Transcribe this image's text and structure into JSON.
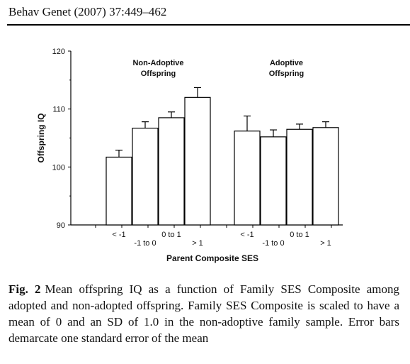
{
  "header": {
    "journal_ref": "Behav Genet (2007) 37:449–462"
  },
  "caption": {
    "label": "Fig. 2",
    "text": "Mean offspring IQ as a function of Family SES Composite among adopted and non-adopted offspring. Family SES Composite is scaled to have a mean of 0 and an SD of 1.0 in the non-adoptive family sample. Error bars demarcate one standard error of the mean"
  },
  "chart_data": {
    "type": "bar",
    "xlabel": "Parent Composite SES",
    "ylabel": "Offspring IQ",
    "ylim": [
      90,
      120
    ],
    "yticks": [
      90,
      100,
      110,
      120
    ],
    "categories": [
      "< -1",
      "-1 to 0",
      "0 to 1",
      "> 1"
    ],
    "error_bars": "one-sided, upward, standard error",
    "grid": false,
    "series": [
      {
        "name": "Non-Adoptive Offspring",
        "group_label_lines": [
          "Non-Adoptive",
          "Offspring"
        ],
        "values": [
          101.7,
          106.7,
          108.5,
          112.0
        ],
        "errors": [
          1.2,
          1.1,
          1.0,
          1.7
        ]
      },
      {
        "name": "Adoptive Offspring",
        "group_label_lines": [
          "Adoptive",
          "Offspring"
        ],
        "values": [
          106.2,
          105.2,
          106.5,
          106.8
        ],
        "errors": [
          2.6,
          1.2,
          0.9,
          1.0
        ]
      }
    ]
  }
}
